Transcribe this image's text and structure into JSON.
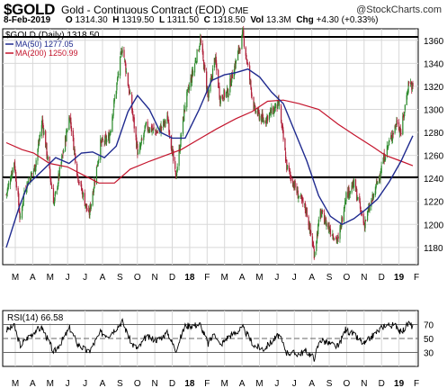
{
  "header": {
    "symbol": "$GOLD",
    "description": "Gold - Continuous Contract (EOD)",
    "exchange": "CME",
    "brand": "@StockCharts.com",
    "date": "8-Feb-2019",
    "open_label": "O",
    "open": "1314.30",
    "high_label": "H",
    "high": "1319.50",
    "low_label": "L",
    "low": "1311.50",
    "close_label": "C",
    "close": "1318.50",
    "volume_label": "Vol",
    "volume": "13.3M",
    "change_label": "Chg",
    "change": "+4.30 (+0.33%)"
  },
  "colors": {
    "up": "#2e8b2e",
    "down": "#b0203a",
    "ma50": "#1f2a8f",
    "ma200": "#c4142c",
    "grid": "#d8d8d8",
    "rsi": "#000000"
  },
  "chart_data": [
    {
      "type": "line",
      "chart": "price",
      "title": "$GOLD (Daily) 1318.50",
      "ylim": [
        1165,
        1370
      ],
      "y_ticks": [
        1180,
        1200,
        1220,
        1240,
        1260,
        1280,
        1300,
        1320,
        1340,
        1360
      ],
      "x_ticks": [
        "M",
        "A",
        "M",
        "J",
        "J",
        "A",
        "S",
        "O",
        "N",
        "D",
        "18",
        "F",
        "M",
        "A",
        "M",
        "J",
        "J",
        "A",
        "S",
        "O",
        "N",
        "D",
        "19",
        "F"
      ],
      "horizontal_lines": [
        1241,
        1363
      ],
      "legend": [
        {
          "name": "MA(50) 1277.05",
          "color": "#1f2a8f"
        },
        {
          "name": "MA(200) 1250.99",
          "color": "#c4142c"
        }
      ],
      "x_start": "2017-02-13",
      "x_end": "2019-02-08",
      "series": [
        {
          "name": "$GOLD (Daily)",
          "points": [
            [
              "2017-02-13",
              1226
            ],
            [
              "2017-02-27",
              1255
            ],
            [
              "2017-03-10",
              1203
            ],
            [
              "2017-03-17",
              1230
            ],
            [
              "2017-04-05",
              1250
            ],
            [
              "2017-04-18",
              1290
            ],
            [
              "2017-05-09",
              1218
            ],
            [
              "2017-06-06",
              1295
            ],
            [
              "2017-06-20",
              1243
            ],
            [
              "2017-07-10",
              1207
            ],
            [
              "2017-07-31",
              1270
            ],
            [
              "2017-08-15",
              1275
            ],
            [
              "2017-09-08",
              1355
            ],
            [
              "2017-09-25",
              1300
            ],
            [
              "2017-10-06",
              1260
            ],
            [
              "2017-10-20",
              1285
            ],
            [
              "2017-11-10",
              1280
            ],
            [
              "2017-11-28",
              1292
            ],
            [
              "2017-12-12",
              1240
            ],
            [
              "2017-12-29",
              1305
            ],
            [
              "2018-01-25",
              1360
            ],
            [
              "2018-02-08",
              1310
            ],
            [
              "2018-02-20",
              1345
            ],
            [
              "2018-03-01",
              1310
            ],
            [
              "2018-03-15",
              1315
            ],
            [
              "2018-04-11",
              1365
            ],
            [
              "2018-05-01",
              1300
            ],
            [
              "2018-05-18",
              1290
            ],
            [
              "2018-06-14",
              1305
            ],
            [
              "2018-06-28",
              1250
            ],
            [
              "2018-07-19",
              1225
            ],
            [
              "2018-08-02",
              1212
            ],
            [
              "2018-08-16",
              1175
            ],
            [
              "2018-08-27",
              1210
            ],
            [
              "2018-09-14",
              1195
            ],
            [
              "2018-09-28",
              1185
            ],
            [
              "2018-10-11",
              1225
            ],
            [
              "2018-10-26",
              1235
            ],
            [
              "2018-11-13",
              1200
            ],
            [
              "2018-11-30",
              1225
            ],
            [
              "2018-12-21",
              1262
            ],
            [
              "2019-01-11",
              1290
            ],
            [
              "2019-01-18",
              1280
            ],
            [
              "2019-02-01",
              1325
            ],
            [
              "2019-02-08",
              1318.5
            ]
          ]
        },
        {
          "name": "MA(50) 1277.05",
          "points": [
            [
              "2017-02-13",
              1180
            ],
            [
              "2017-03-08",
              1215
            ],
            [
              "2017-03-24",
              1235
            ],
            [
              "2017-04-21",
              1248
            ],
            [
              "2017-05-12",
              1258
            ],
            [
              "2017-06-05",
              1253
            ],
            [
              "2017-06-27",
              1262
            ],
            [
              "2017-07-17",
              1263
            ],
            [
              "2017-08-07",
              1258
            ],
            [
              "2017-08-28",
              1268
            ],
            [
              "2017-09-18",
              1298
            ],
            [
              "2017-10-05",
              1312
            ],
            [
              "2017-10-26",
              1300
            ],
            [
              "2017-11-15",
              1280
            ],
            [
              "2017-12-06",
              1275
            ],
            [
              "2017-12-29",
              1275
            ],
            [
              "2018-01-23",
              1300
            ],
            [
              "2018-02-14",
              1325
            ],
            [
              "2018-03-09",
              1330
            ],
            [
              "2018-03-30",
              1332
            ],
            [
              "2018-04-20",
              1335
            ],
            [
              "2018-05-11",
              1328
            ],
            [
              "2018-06-01",
              1315
            ],
            [
              "2018-06-22",
              1305
            ],
            [
              "2018-07-13",
              1280
            ],
            [
              "2018-08-03",
              1255
            ],
            [
              "2018-08-24",
              1225
            ],
            [
              "2018-09-14",
              1207
            ],
            [
              "2018-10-05",
              1200
            ],
            [
              "2018-10-26",
              1205
            ],
            [
              "2018-11-16",
              1213
            ],
            [
              "2018-12-07",
              1222
            ],
            [
              "2018-12-28",
              1237
            ],
            [
              "2019-01-18",
              1255
            ],
            [
              "2019-02-08",
              1277.05
            ]
          ]
        },
        {
          "name": "MA(200) 1250.99",
          "points": [
            [
              "2017-02-13",
              1271
            ],
            [
              "2017-03-13",
              1265
            ],
            [
              "2017-04-03",
              1262
            ],
            [
              "2017-05-01",
              1253
            ],
            [
              "2017-06-02",
              1250
            ],
            [
              "2017-06-30",
              1243
            ],
            [
              "2017-07-28",
              1236
            ],
            [
              "2017-08-25",
              1236
            ],
            [
              "2017-09-22",
              1248
            ],
            [
              "2017-10-27",
              1255
            ],
            [
              "2017-11-24",
              1260
            ],
            [
              "2017-12-22",
              1265
            ],
            [
              "2018-01-26",
              1275
            ],
            [
              "2018-02-23",
              1283
            ],
            [
              "2018-03-30",
              1292
            ],
            [
              "2018-04-27",
              1298
            ],
            [
              "2018-05-25",
              1307
            ],
            [
              "2018-06-22",
              1308
            ],
            [
              "2018-07-20",
              1305
            ],
            [
              "2018-08-24",
              1300
            ],
            [
              "2018-09-28",
              1287
            ],
            [
              "2018-10-26",
              1278
            ],
            [
              "2018-11-30",
              1267
            ],
            [
              "2018-12-21",
              1260
            ],
            [
              "2019-01-18",
              1255
            ],
            [
              "2019-02-08",
              1250.99
            ]
          ]
        }
      ]
    },
    {
      "type": "line",
      "chart": "rsi",
      "title": "RSI(14) 66.58",
      "ylim": [
        10,
        90
      ],
      "y_ticks": [
        30,
        50,
        70
      ],
      "reference_lines": [
        30,
        50,
        70
      ],
      "x_start": "2017-02-13",
      "x_end": "2019-02-08",
      "series": [
        {
          "name": "RSI(14) 66.58",
          "points": [
            [
              "2017-02-13",
              62
            ],
            [
              "2017-02-27",
              68
            ],
            [
              "2017-03-10",
              40
            ],
            [
              "2017-03-24",
              52
            ],
            [
              "2017-04-07",
              62
            ],
            [
              "2017-04-18",
              65
            ],
            [
              "2017-05-09",
              30
            ],
            [
              "2017-05-26",
              50
            ],
            [
              "2017-06-06",
              65
            ],
            [
              "2017-06-20",
              42
            ],
            [
              "2017-07-10",
              30
            ],
            [
              "2017-07-31",
              58
            ],
            [
              "2017-08-15",
              55
            ],
            [
              "2017-09-08",
              74
            ],
            [
              "2017-09-25",
              42
            ],
            [
              "2017-10-06",
              35
            ],
            [
              "2017-10-20",
              52
            ],
            [
              "2017-11-10",
              48
            ],
            [
              "2017-11-28",
              58
            ],
            [
              "2017-12-12",
              33
            ],
            [
              "2017-12-29",
              68
            ],
            [
              "2018-01-25",
              70
            ],
            [
              "2018-02-08",
              42
            ],
            [
              "2018-02-20",
              58
            ],
            [
              "2018-03-01",
              40
            ],
            [
              "2018-03-15",
              52
            ],
            [
              "2018-04-11",
              65
            ],
            [
              "2018-05-01",
              40
            ],
            [
              "2018-05-18",
              35
            ],
            [
              "2018-06-14",
              55
            ],
            [
              "2018-06-28",
              30
            ],
            [
              "2018-07-19",
              28
            ],
            [
              "2018-08-02",
              32
            ],
            [
              "2018-08-16",
              22
            ],
            [
              "2018-08-27",
              48
            ],
            [
              "2018-09-14",
              42
            ],
            [
              "2018-09-28",
              38
            ],
            [
              "2018-10-11",
              63
            ],
            [
              "2018-10-26",
              55
            ],
            [
              "2018-11-13",
              42
            ],
            [
              "2018-11-30",
              55
            ],
            [
              "2018-12-21",
              70
            ],
            [
              "2019-01-11",
              68
            ],
            [
              "2019-01-18",
              58
            ],
            [
              "2019-02-01",
              72
            ],
            [
              "2019-02-08",
              66.58
            ]
          ]
        }
      ]
    }
  ]
}
